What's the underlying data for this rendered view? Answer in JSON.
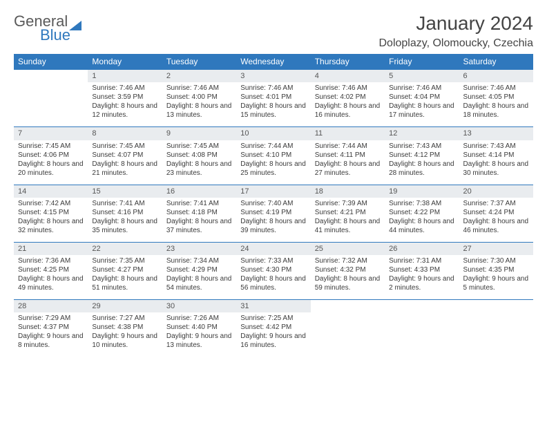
{
  "brand": {
    "part1": "General",
    "part2": "Blue"
  },
  "title": "January 2024",
  "location": "Doloplazy, Olomoucky, Czechia",
  "colors": {
    "header_bg": "#2f78bd",
    "daynum_bg": "#e9ecef",
    "border": "#2f78bd"
  },
  "day_headers": [
    "Sunday",
    "Monday",
    "Tuesday",
    "Wednesday",
    "Thursday",
    "Friday",
    "Saturday"
  ],
  "weeks": [
    [
      null,
      {
        "n": "1",
        "sr": "Sunrise: 7:46 AM",
        "ss": "Sunset: 3:59 PM",
        "dl": "Daylight: 8 hours and 12 minutes."
      },
      {
        "n": "2",
        "sr": "Sunrise: 7:46 AM",
        "ss": "Sunset: 4:00 PM",
        "dl": "Daylight: 8 hours and 13 minutes."
      },
      {
        "n": "3",
        "sr": "Sunrise: 7:46 AM",
        "ss": "Sunset: 4:01 PM",
        "dl": "Daylight: 8 hours and 15 minutes."
      },
      {
        "n": "4",
        "sr": "Sunrise: 7:46 AM",
        "ss": "Sunset: 4:02 PM",
        "dl": "Daylight: 8 hours and 16 minutes."
      },
      {
        "n": "5",
        "sr": "Sunrise: 7:46 AM",
        "ss": "Sunset: 4:04 PM",
        "dl": "Daylight: 8 hours and 17 minutes."
      },
      {
        "n": "6",
        "sr": "Sunrise: 7:46 AM",
        "ss": "Sunset: 4:05 PM",
        "dl": "Daylight: 8 hours and 18 minutes."
      }
    ],
    [
      {
        "n": "7",
        "sr": "Sunrise: 7:45 AM",
        "ss": "Sunset: 4:06 PM",
        "dl": "Daylight: 8 hours and 20 minutes."
      },
      {
        "n": "8",
        "sr": "Sunrise: 7:45 AM",
        "ss": "Sunset: 4:07 PM",
        "dl": "Daylight: 8 hours and 21 minutes."
      },
      {
        "n": "9",
        "sr": "Sunrise: 7:45 AM",
        "ss": "Sunset: 4:08 PM",
        "dl": "Daylight: 8 hours and 23 minutes."
      },
      {
        "n": "10",
        "sr": "Sunrise: 7:44 AM",
        "ss": "Sunset: 4:10 PM",
        "dl": "Daylight: 8 hours and 25 minutes."
      },
      {
        "n": "11",
        "sr": "Sunrise: 7:44 AM",
        "ss": "Sunset: 4:11 PM",
        "dl": "Daylight: 8 hours and 27 minutes."
      },
      {
        "n": "12",
        "sr": "Sunrise: 7:43 AM",
        "ss": "Sunset: 4:12 PM",
        "dl": "Daylight: 8 hours and 28 minutes."
      },
      {
        "n": "13",
        "sr": "Sunrise: 7:43 AM",
        "ss": "Sunset: 4:14 PM",
        "dl": "Daylight: 8 hours and 30 minutes."
      }
    ],
    [
      {
        "n": "14",
        "sr": "Sunrise: 7:42 AM",
        "ss": "Sunset: 4:15 PM",
        "dl": "Daylight: 8 hours and 32 minutes."
      },
      {
        "n": "15",
        "sr": "Sunrise: 7:41 AM",
        "ss": "Sunset: 4:16 PM",
        "dl": "Daylight: 8 hours and 35 minutes."
      },
      {
        "n": "16",
        "sr": "Sunrise: 7:41 AM",
        "ss": "Sunset: 4:18 PM",
        "dl": "Daylight: 8 hours and 37 minutes."
      },
      {
        "n": "17",
        "sr": "Sunrise: 7:40 AM",
        "ss": "Sunset: 4:19 PM",
        "dl": "Daylight: 8 hours and 39 minutes."
      },
      {
        "n": "18",
        "sr": "Sunrise: 7:39 AM",
        "ss": "Sunset: 4:21 PM",
        "dl": "Daylight: 8 hours and 41 minutes."
      },
      {
        "n": "19",
        "sr": "Sunrise: 7:38 AM",
        "ss": "Sunset: 4:22 PM",
        "dl": "Daylight: 8 hours and 44 minutes."
      },
      {
        "n": "20",
        "sr": "Sunrise: 7:37 AM",
        "ss": "Sunset: 4:24 PM",
        "dl": "Daylight: 8 hours and 46 minutes."
      }
    ],
    [
      {
        "n": "21",
        "sr": "Sunrise: 7:36 AM",
        "ss": "Sunset: 4:25 PM",
        "dl": "Daylight: 8 hours and 49 minutes."
      },
      {
        "n": "22",
        "sr": "Sunrise: 7:35 AM",
        "ss": "Sunset: 4:27 PM",
        "dl": "Daylight: 8 hours and 51 minutes."
      },
      {
        "n": "23",
        "sr": "Sunrise: 7:34 AM",
        "ss": "Sunset: 4:29 PM",
        "dl": "Daylight: 8 hours and 54 minutes."
      },
      {
        "n": "24",
        "sr": "Sunrise: 7:33 AM",
        "ss": "Sunset: 4:30 PM",
        "dl": "Daylight: 8 hours and 56 minutes."
      },
      {
        "n": "25",
        "sr": "Sunrise: 7:32 AM",
        "ss": "Sunset: 4:32 PM",
        "dl": "Daylight: 8 hours and 59 minutes."
      },
      {
        "n": "26",
        "sr": "Sunrise: 7:31 AM",
        "ss": "Sunset: 4:33 PM",
        "dl": "Daylight: 9 hours and 2 minutes."
      },
      {
        "n": "27",
        "sr": "Sunrise: 7:30 AM",
        "ss": "Sunset: 4:35 PM",
        "dl": "Daylight: 9 hours and 5 minutes."
      }
    ],
    [
      {
        "n": "28",
        "sr": "Sunrise: 7:29 AM",
        "ss": "Sunset: 4:37 PM",
        "dl": "Daylight: 9 hours and 8 minutes."
      },
      {
        "n": "29",
        "sr": "Sunrise: 7:27 AM",
        "ss": "Sunset: 4:38 PM",
        "dl": "Daylight: 9 hours and 10 minutes."
      },
      {
        "n": "30",
        "sr": "Sunrise: 7:26 AM",
        "ss": "Sunset: 4:40 PM",
        "dl": "Daylight: 9 hours and 13 minutes."
      },
      {
        "n": "31",
        "sr": "Sunrise: 7:25 AM",
        "ss": "Sunset: 4:42 PM",
        "dl": "Daylight: 9 hours and 16 minutes."
      },
      null,
      null,
      null
    ]
  ]
}
